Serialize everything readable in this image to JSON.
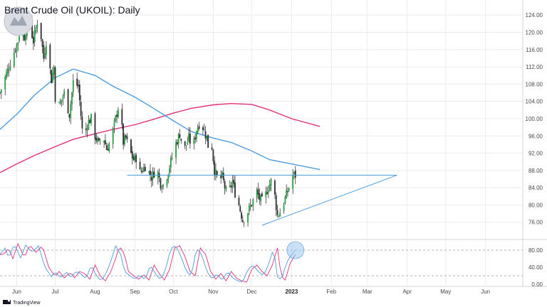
{
  "header": {
    "title": "Brent Crude Oil (UKOIL): Daily"
  },
  "branding": {
    "text": "TradingView"
  },
  "colors": {
    "bull": "#26a042",
    "bear": "#2e2e2e",
    "wick": "#1e1e1e",
    "ma_fast": "#4d9de0",
    "ma_slow": "#e0307a",
    "trendline": "#4d9de0",
    "stoch_k": "#4d9de0",
    "stoch_d": "#e0307a",
    "stoch_level": "#9a9a9a",
    "grid": "#ececec",
    "highlight": "#9cc7ee"
  },
  "chart_data": [
    {
      "type": "candlestick",
      "title": "Brent Crude Oil (UKOIL): Daily",
      "y_ticks": [
        "124.00",
        "120.00",
        "116.00",
        "112.00",
        "108.00",
        "104.00",
        "100.00",
        "96.00",
        "92.00",
        "88.00",
        "84.00",
        "80.00",
        "76.00"
      ],
      "ylim": [
        72.5,
        126.5
      ],
      "x_ticks": [
        "Jun",
        "Jul",
        "Aug",
        "Sep",
        "Oct",
        "Nov",
        "Dec",
        "2023",
        "Feb",
        "Mar",
        "Apr",
        "May",
        "Jun"
      ],
      "series": {
        "ohlc": [],
        "ma_fast": [],
        "ma_slow": []
      },
      "trendlines": [
        {
          "kind": "horizontal",
          "from": [
            "Aug 26 2022",
            86.9
          ],
          "to": [
            "Mar 24 2023",
            86.9
          ]
        },
        {
          "kind": "rising",
          "from": [
            "Dec 9 2022",
            75.3
          ],
          "to": [
            "Mar 24 2023",
            86.9
          ]
        }
      ]
    },
    {
      "type": "line",
      "name": "stochastic",
      "y_ticks": [
        "80.00",
        "40.00",
        "0.00"
      ],
      "ylim": [
        0,
        100
      ],
      "levels": [
        80,
        20
      ],
      "series": {
        "k": [],
        "d": []
      }
    }
  ]
}
